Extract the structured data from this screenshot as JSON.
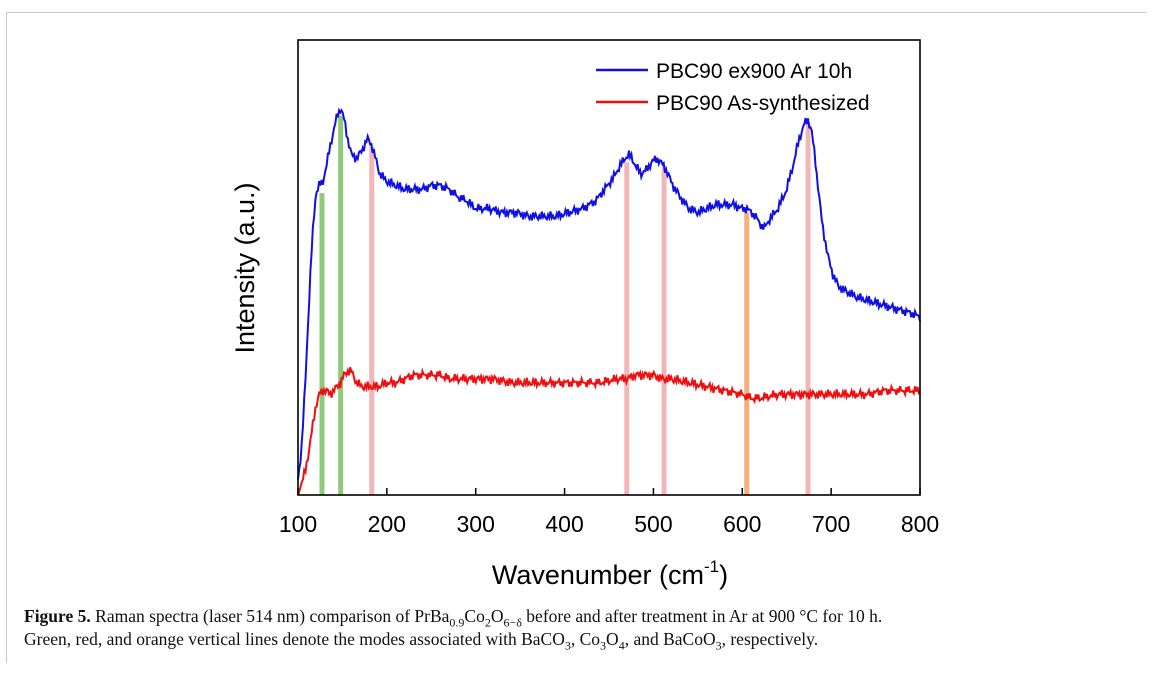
{
  "chart_data": {
    "type": "line",
    "xlabel_main": "Wavenumber (cm",
    "xlabel_sup": "-1",
    "xlabel_end": ")",
    "ylabel": "Intensity (a.u.)",
    "xlim": [
      100,
      800
    ],
    "xticks": [
      100,
      200,
      300,
      400,
      500,
      600,
      700,
      800
    ],
    "ylim": [
      0,
      1
    ],
    "y_tick_labels": false,
    "grid": false,
    "legend_position": "top-right",
    "series": [
      {
        "name": "PBC90 ex900 Ar 10h",
        "color": "#1010e0",
        "x": [
          100,
          104,
          108,
          112,
          116,
          120,
          124,
          128,
          132,
          136,
          140,
          144,
          148,
          152,
          156,
          160,
          166,
          172,
          178,
          182,
          186,
          192,
          200,
          210,
          220,
          230,
          240,
          250,
          260,
          270,
          280,
          290,
          300,
          315,
          330,
          345,
          360,
          375,
          390,
          405,
          420,
          435,
          445,
          455,
          462,
          468,
          472,
          476,
          480,
          486,
          492,
          498,
          504,
          508,
          512,
          516,
          522,
          530,
          540,
          550,
          560,
          570,
          580,
          590,
          600,
          605,
          610,
          615,
          620,
          625,
          630,
          640,
          650,
          658,
          664,
          670,
          674,
          678,
          682,
          686,
          690,
          696,
          702,
          708,
          714,
          722,
          730,
          745,
          760,
          775,
          790,
          800
        ],
        "y": [
          0.04,
          0.12,
          0.28,
          0.48,
          0.66,
          0.78,
          0.8,
          0.81,
          0.85,
          0.9,
          0.94,
          0.98,
          1.0,
          0.97,
          0.92,
          0.88,
          0.87,
          0.89,
          0.92,
          0.91,
          0.88,
          0.83,
          0.81,
          0.8,
          0.79,
          0.79,
          0.79,
          0.8,
          0.8,
          0.79,
          0.77,
          0.76,
          0.74,
          0.74,
          0.73,
          0.73,
          0.72,
          0.72,
          0.72,
          0.73,
          0.74,
          0.76,
          0.79,
          0.82,
          0.85,
          0.87,
          0.88,
          0.87,
          0.85,
          0.83,
          0.84,
          0.86,
          0.87,
          0.86,
          0.85,
          0.83,
          0.8,
          0.77,
          0.74,
          0.73,
          0.74,
          0.75,
          0.75,
          0.75,
          0.74,
          0.74,
          0.73,
          0.72,
          0.7,
          0.69,
          0.71,
          0.74,
          0.79,
          0.86,
          0.92,
          0.96,
          0.97,
          0.94,
          0.87,
          0.78,
          0.7,
          0.62,
          0.57,
          0.54,
          0.53,
          0.52,
          0.51,
          0.5,
          0.49,
          0.48,
          0.47,
          0.46
        ]
      },
      {
        "name": "PBC90 As-synthesized",
        "color": "#ee1010",
        "x": [
          100,
          104,
          108,
          112,
          116,
          120,
          124,
          128,
          132,
          136,
          140,
          144,
          148,
          152,
          156,
          160,
          166,
          172,
          180,
          190,
          200,
          210,
          220,
          230,
          240,
          250,
          260,
          270,
          280,
          290,
          300,
          320,
          340,
          360,
          380,
          400,
          420,
          440,
          460,
          470,
          480,
          490,
          500,
          510,
          520,
          540,
          560,
          580,
          600,
          610,
          620,
          640,
          660,
          680,
          700,
          720,
          740,
          760,
          780,
          800
        ],
        "y": [
          0.01,
          0.03,
          0.06,
          0.11,
          0.17,
          0.23,
          0.26,
          0.27,
          0.27,
          0.26,
          0.27,
          0.28,
          0.29,
          0.31,
          0.32,
          0.32,
          0.29,
          0.28,
          0.28,
          0.28,
          0.29,
          0.29,
          0.3,
          0.31,
          0.31,
          0.31,
          0.31,
          0.3,
          0.3,
          0.3,
          0.3,
          0.3,
          0.29,
          0.29,
          0.29,
          0.29,
          0.29,
          0.29,
          0.3,
          0.3,
          0.31,
          0.31,
          0.31,
          0.3,
          0.3,
          0.29,
          0.28,
          0.27,
          0.26,
          0.25,
          0.25,
          0.26,
          0.26,
          0.26,
          0.26,
          0.26,
          0.26,
          0.27,
          0.27,
          0.27
        ]
      }
    ],
    "mode_lines": [
      {
        "x": 127,
        "color": "#8fc97a",
        "top": 0.78
      },
      {
        "x": 148,
        "color": "#8fc97a",
        "top": 0.98
      },
      {
        "x": 183,
        "color": "#f2b6b6",
        "top": 0.9
      },
      {
        "x": 470,
        "color": "#f2b6b6",
        "top": 0.86
      },
      {
        "x": 512,
        "color": "#f2b6b6",
        "top": 0.85
      },
      {
        "x": 605,
        "color": "#f5b07a",
        "top": 0.73
      },
      {
        "x": 674,
        "color": "#f2b6b6",
        "top": 0.96
      }
    ]
  },
  "caption": {
    "label": "Figure 5.",
    "line1_a": " Raman spectra (laser 514 nm) comparison of PrBa",
    "line1_sub1": "0.9",
    "line1_b": "Co",
    "line1_sub2": "2",
    "line1_c": "O",
    "line1_sub3": "6−δ",
    "line1_d": " before and after treatment in Ar at 900 °C for 10 h.",
    "line2_a": "Green, red, and orange vertical lines denote the modes associated with BaCO",
    "line2_sub1": "3",
    "line2_b": ", Co",
    "line2_sub2": "3",
    "line2_c": "O",
    "line2_sub3": "4",
    "line2_d": ", and BaCoO",
    "line2_sub4": "3",
    "line2_e": ", respectively."
  }
}
